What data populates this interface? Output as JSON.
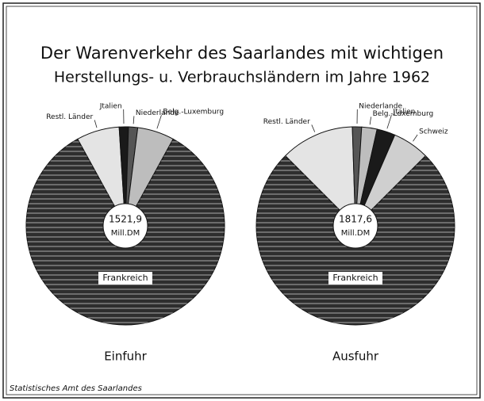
{
  "chart_data": [
    {
      "type": "pie",
      "title": "Der Warenverkehr des Saarlandes mit wichtigen",
      "subtitle": "Herstellungs- u. Verbrauchsländern im Jahre 1962",
      "label": "Einfuhr",
      "total": "1521,9",
      "unit": "Mill.DM",
      "categories": [
        "Restl. Länder",
        "Jtalien",
        "Niederlande",
        "Belg.-Luxemburg",
        "Frankreich"
      ],
      "values": [
        7,
        1.5,
        1.5,
        6,
        84
      ],
      "colors": [
        "#e4e4e4",
        "#1a1a1a",
        "#555555",
        "#bdbdbd",
        "#2e2e2e"
      ]
    },
    {
      "type": "pie",
      "label": "Ausfuhr",
      "total": "1817,6",
      "unit": "Mill.DM",
      "categories": [
        "Restl. Länder",
        "Niederlande",
        "Belg.-Luxemburg",
        "Jtalien",
        "Schweiz",
        "Frankreich"
      ],
      "values": [
        12,
        1.5,
        2.5,
        3,
        6,
        75
      ],
      "colors": [
        "#e4e4e4",
        "#555555",
        "#bdbdbd",
        "#1a1a1a",
        "#cfcfcf",
        "#2e2e2e"
      ]
    }
  ],
  "source": "Statistisches Amt des Saarlandes"
}
